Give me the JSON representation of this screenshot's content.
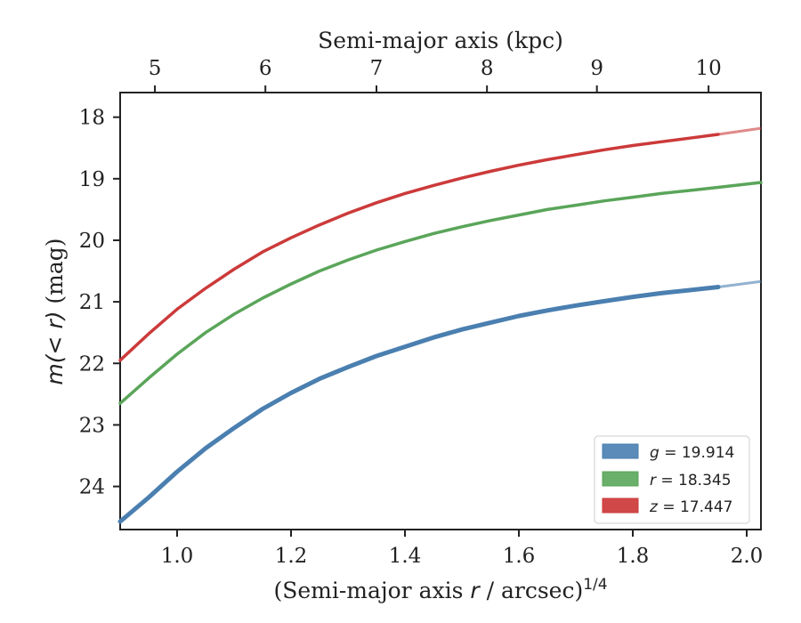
{
  "chart_data": {
    "type": "line",
    "xlabel": "(Semi-major axis r / arcsec)^{1/4}",
    "xlabel_prefix": "(Semi-major axis ",
    "xlabel_var": "r",
    "xlabel_mid": " / arcsec)",
    "xlabel_sup": "1/4",
    "ylabel": "m(< r) (mag)",
    "ylabel_math": "m(< r)",
    "ylabel_unit": " (mag)",
    "top_xlabel": "Semi-major axis (kpc)",
    "xlim": [
      0.9,
      2.025
    ],
    "ylim": [
      24.7,
      17.6
    ],
    "y_inverted": true,
    "x_ticks": [
      1.0,
      1.2,
      1.4,
      1.6,
      1.8,
      2.0
    ],
    "x_tick_labels": [
      "1.0",
      "1.2",
      "1.4",
      "1.6",
      "1.8",
      "2.0"
    ],
    "y_ticks": [
      18,
      19,
      20,
      21,
      22,
      23,
      24
    ],
    "y_tick_labels": [
      "18",
      "19",
      "20",
      "21",
      "22",
      "23",
      "24"
    ],
    "top_ticks_kpc": [
      5,
      6,
      7,
      8,
      9,
      10
    ],
    "top_tick_labels": [
      "5",
      "6",
      "7",
      "8",
      "9",
      "10"
    ],
    "top_tick_positions_x": [
      0.961,
      1.155,
      1.35,
      1.544,
      1.737,
      1.933
    ],
    "legend": {
      "location": "lower right"
    },
    "series": [
      {
        "name": "g = 19.914",
        "legend_var": "g",
        "legend_value": "= 19.914",
        "color": "#4a7fb0",
        "x": [
          0.9,
          0.95,
          1.0,
          1.05,
          1.1,
          1.15,
          1.2,
          1.25,
          1.3,
          1.35,
          1.4,
          1.45,
          1.5,
          1.55,
          1.6,
          1.65,
          1.7,
          1.75,
          1.8,
          1.85,
          1.9,
          1.95
        ],
        "y": [
          24.57,
          24.18,
          23.76,
          23.38,
          23.05,
          22.74,
          22.48,
          22.25,
          22.06,
          21.88,
          21.73,
          21.58,
          21.45,
          21.34,
          21.23,
          21.14,
          21.06,
          20.99,
          20.92,
          20.86,
          20.81,
          20.76
        ],
        "extension_x": [
          1.95,
          2.025
        ],
        "extension_y": [
          20.76,
          20.67
        ]
      },
      {
        "name": "r = 18.345",
        "legend_var": "r",
        "legend_value": "= 18.345",
        "color": "#5aa55a",
        "x": [
          0.9,
          0.95,
          1.0,
          1.05,
          1.1,
          1.15,
          1.2,
          1.25,
          1.3,
          1.35,
          1.4,
          1.45,
          1.5,
          1.55,
          1.6,
          1.65,
          1.7,
          1.75,
          1.8,
          1.85,
          1.9,
          1.95,
          2.025
        ],
        "y": [
          22.65,
          22.24,
          21.85,
          21.5,
          21.2,
          20.94,
          20.71,
          20.5,
          20.32,
          20.16,
          20.02,
          19.89,
          19.78,
          19.68,
          19.59,
          19.5,
          19.43,
          19.36,
          19.3,
          19.24,
          19.19,
          19.14,
          19.06
        ]
      },
      {
        "name": "z = 17.447",
        "legend_var": "z",
        "legend_value": "= 17.447",
        "color": "#cc3a3a",
        "x": [
          0.9,
          0.95,
          1.0,
          1.05,
          1.1,
          1.15,
          1.2,
          1.25,
          1.3,
          1.35,
          1.4,
          1.45,
          1.5,
          1.55,
          1.6,
          1.65,
          1.7,
          1.75,
          1.8,
          1.85,
          1.9,
          1.95
        ],
        "y": [
          21.95,
          21.52,
          21.12,
          20.78,
          20.47,
          20.19,
          19.96,
          19.75,
          19.56,
          19.39,
          19.24,
          19.11,
          18.99,
          18.88,
          18.78,
          18.69,
          18.61,
          18.53,
          18.46,
          18.4,
          18.34,
          18.28
        ],
        "extension_x": [
          1.95,
          2.025
        ],
        "extension_y": [
          18.28,
          18.18
        ]
      }
    ]
  }
}
